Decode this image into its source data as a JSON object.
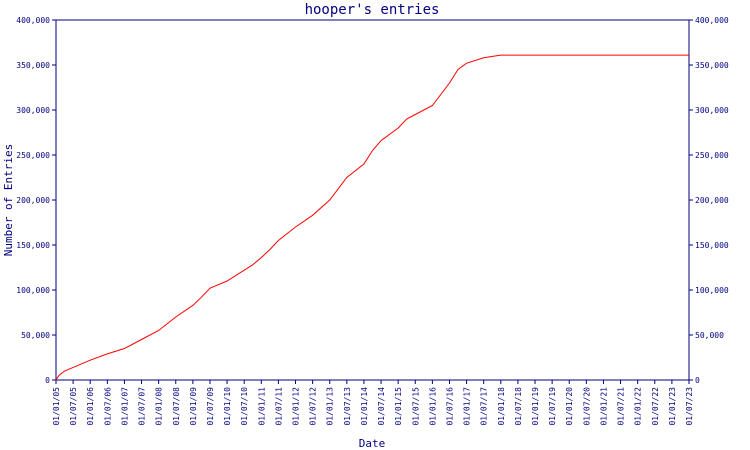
{
  "colors": {
    "axis": "#000080",
    "line": "#ff0000",
    "text": "#000080",
    "background": "#ffffff"
  },
  "chart_data": {
    "type": "line",
    "title": "hooper's entries",
    "xlabel": "Date",
    "ylabel": "Number of Entries",
    "grid": false,
    "legend": "none",
    "ylim": [
      0,
      400000
    ],
    "y_ticks": [
      0,
      50000,
      100000,
      150000,
      200000,
      250000,
      300000,
      350000,
      400000
    ],
    "y_tick_labels": [
      "0",
      "50,000",
      "100,000",
      "150,000",
      "200,000",
      "250,000",
      "300,000",
      "350,000",
      "400,000"
    ],
    "y_axis_right": true,
    "xlim": [
      "01/01/05",
      "01/07/23"
    ],
    "x_tick_labels": [
      "01/01/05",
      "01/07/05",
      "01/01/06",
      "01/07/06",
      "01/01/07",
      "01/07/07",
      "01/01/08",
      "01/07/08",
      "01/01/09",
      "01/07/09",
      "01/01/10",
      "01/07/10",
      "01/01/11",
      "01/07/11",
      "01/01/12",
      "01/07/12",
      "01/01/13",
      "01/07/13",
      "01/01/14",
      "01/07/14",
      "01/01/15",
      "01/07/15",
      "01/01/16",
      "01/07/16",
      "01/01/17",
      "01/07/17",
      "01/01/18",
      "01/07/18",
      "01/01/19",
      "01/07/19",
      "01/01/20",
      "01/07/20",
      "01/01/21",
      "01/07/21",
      "01/01/22",
      "01/07/22",
      "01/01/23",
      "01/07/23"
    ],
    "series": [
      {
        "x": [
          "01/01/05",
          "01/02/05",
          "01/04/05",
          "01/07/05",
          "01/01/06",
          "01/07/06",
          "01/01/07",
          "01/04/07",
          "01/07/07",
          "01/01/08",
          "01/07/08",
          "01/01/09",
          "01/04/09",
          "01/07/09",
          "01/01/10",
          "01/07/10",
          "01/10/10",
          "01/01/11",
          "01/04/11",
          "01/07/11",
          "01/01/12",
          "01/07/12",
          "01/01/13",
          "01/07/13",
          "01/01/14",
          "01/04/14",
          "01/07/14",
          "01/01/15",
          "01/04/15",
          "01/07/15",
          "01/01/16",
          "01/07/16",
          "01/10/16",
          "01/01/17",
          "01/07/17",
          "01/01/18",
          "01/07/18",
          "01/07/19",
          "01/07/20",
          "01/07/21",
          "01/07/22",
          "01/07/23"
        ],
        "y": [
          0,
          5000,
          10000,
          14000,
          22000,
          29000,
          35000,
          40000,
          45000,
          55000,
          70000,
          83000,
          92000,
          102000,
          110000,
          122000,
          128000,
          136000,
          145000,
          155000,
          170000,
          183000,
          200000,
          225000,
          240000,
          255000,
          266000,
          280000,
          290000,
          295000,
          305000,
          330000,
          345000,
          352000,
          358000,
          361000,
          361000,
          361000,
          361000,
          361000,
          361000,
          361000
        ]
      }
    ]
  }
}
